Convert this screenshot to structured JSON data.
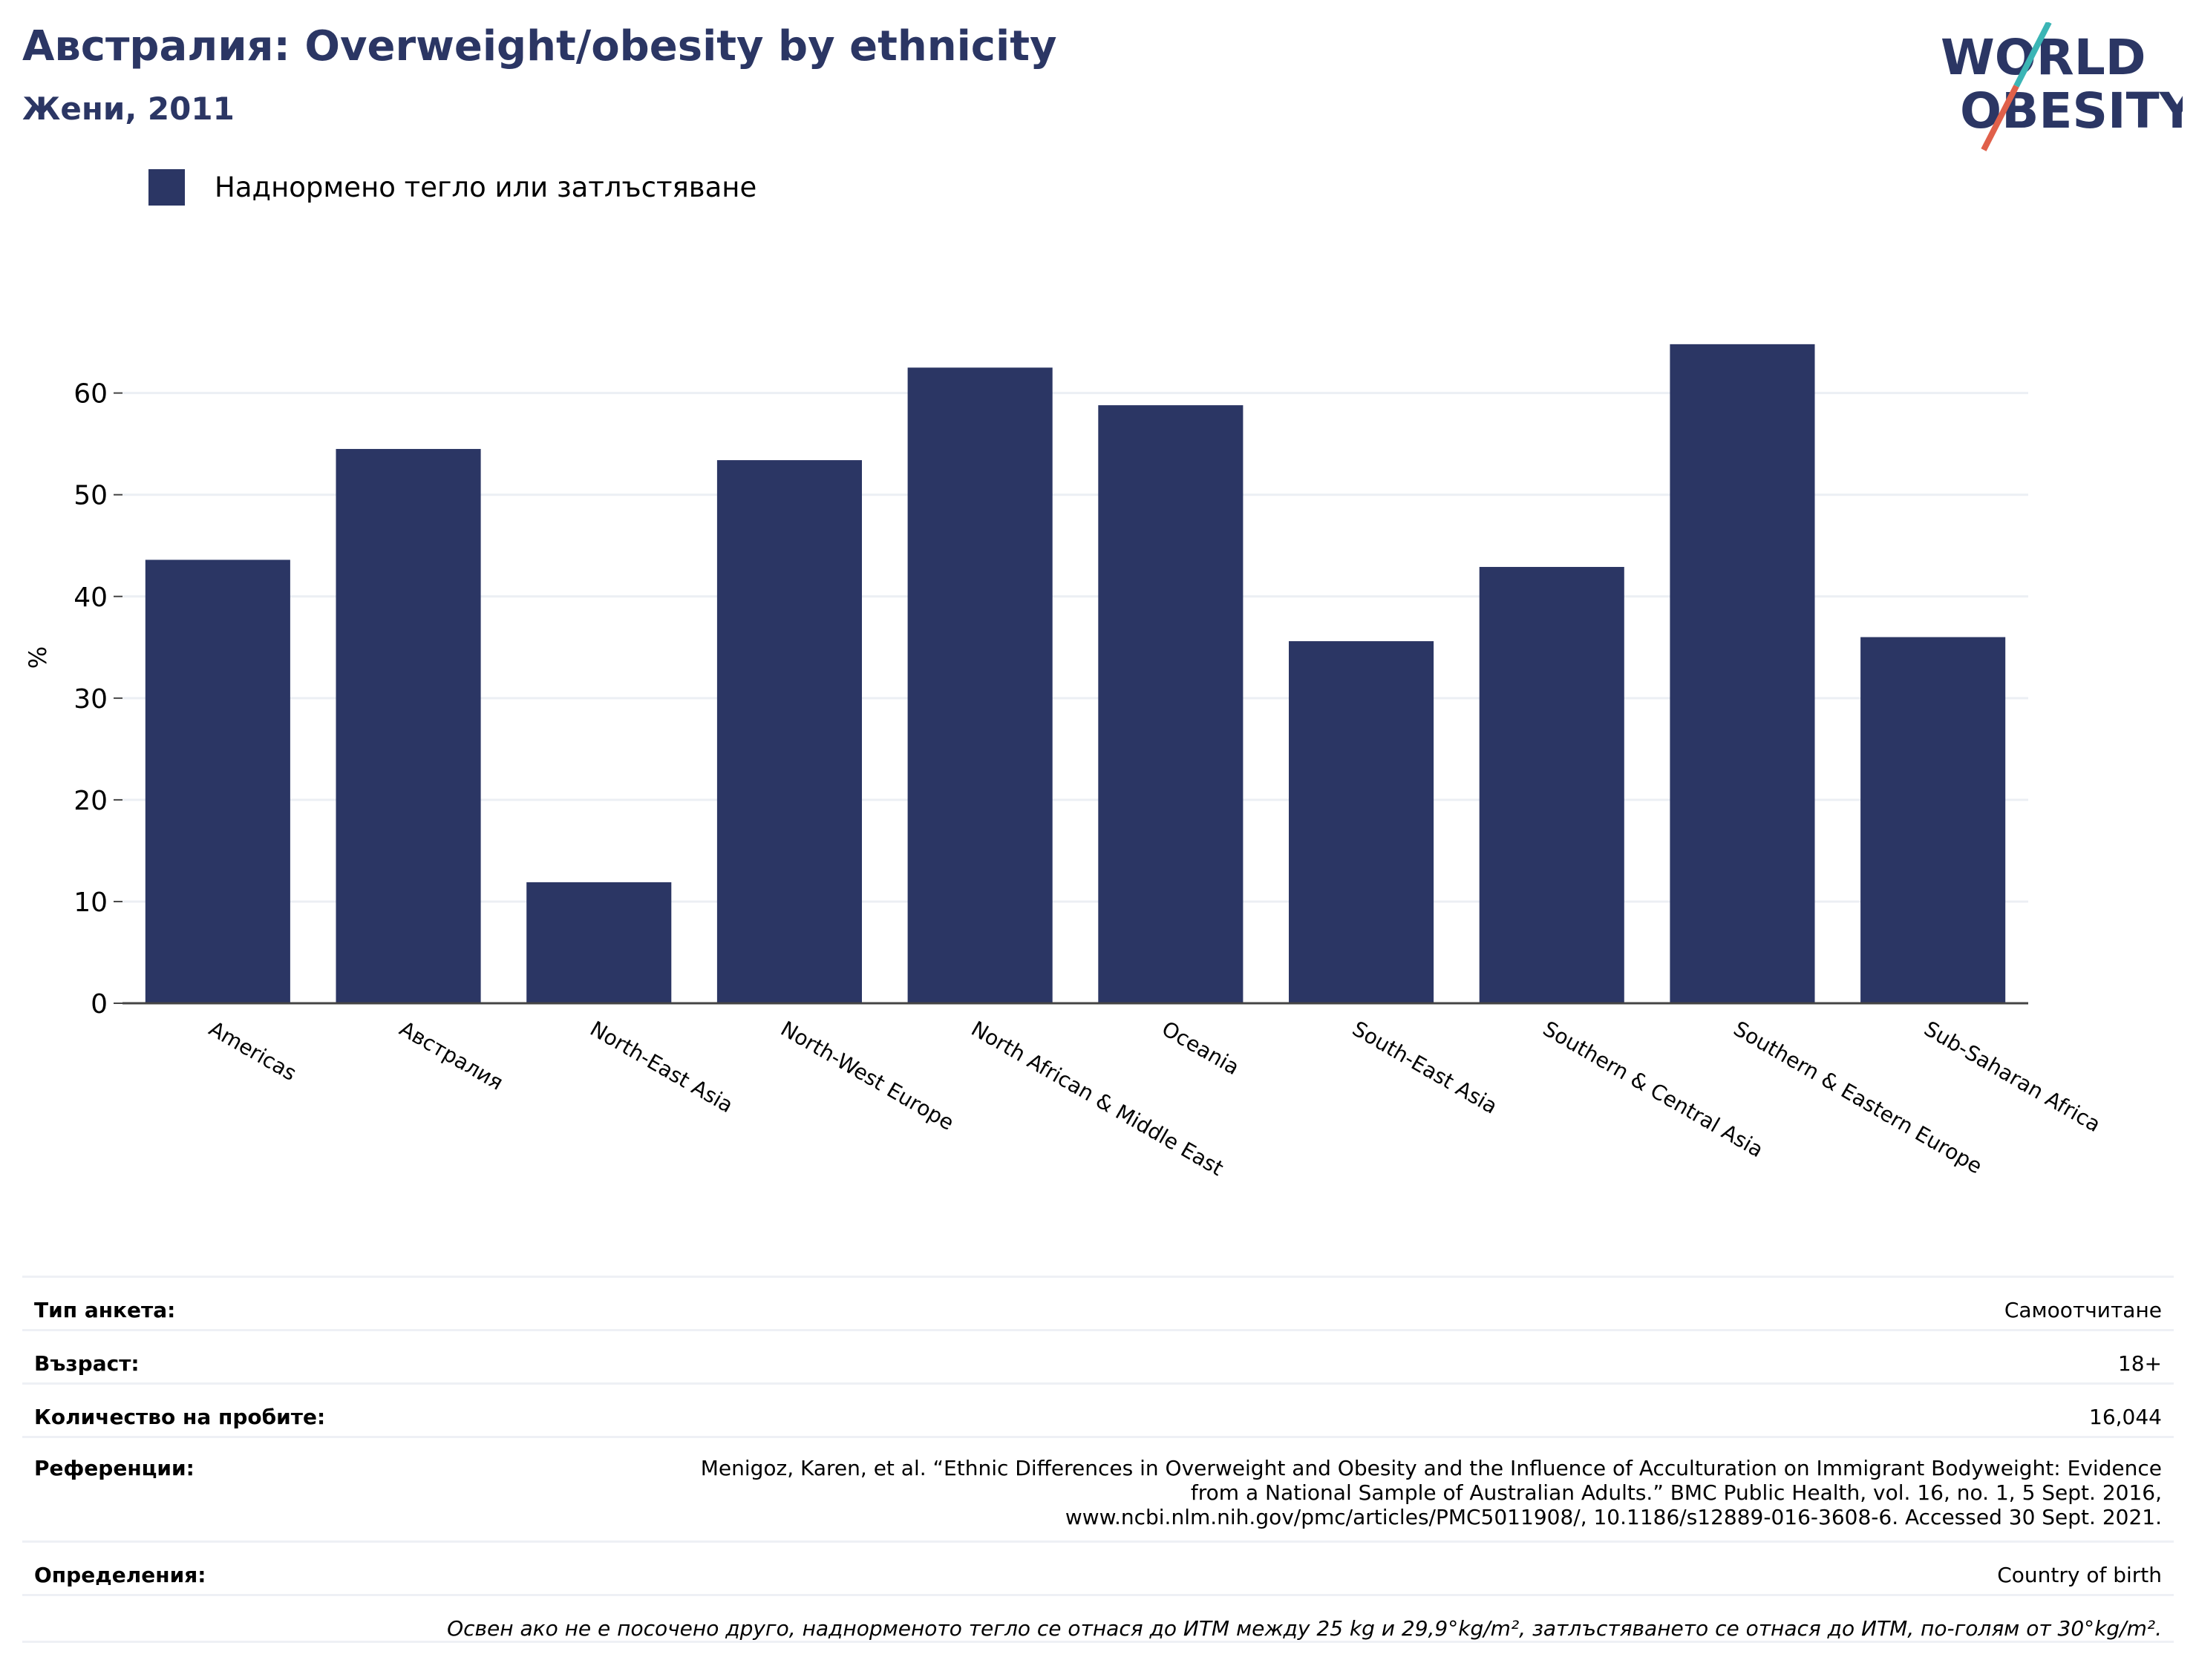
{
  "header": {
    "title": "Австралия: Overweight/obesity by ethnicity",
    "subtitle": "Жени, 2011",
    "logo_line1": "WORLD",
    "logo_line2": "OBESITY"
  },
  "legend": {
    "label": "Наднормено тегло или затлъстяване"
  },
  "colors": {
    "bar": "#2b3664",
    "grid": "#eceff4",
    "axis": "#444444",
    "logo_teal": "#3bb5b5",
    "logo_red": "#e0604a"
  },
  "chart_data": {
    "type": "bar",
    "categories": [
      "Americas",
      "Австралия",
      "North-East Asia",
      "North-West Europe",
      "North African & Middle East",
      "Oceania",
      "South-East Asia",
      "Southern & Central Asia",
      "Southern & Eastern Europe",
      "Sub-Saharan Africa"
    ],
    "series": [
      {
        "name": "Наднормено тегло или затлъстяване",
        "values": [
          43.6,
          54.5,
          11.9,
          53.4,
          62.5,
          58.8,
          35.6,
          42.9,
          64.8,
          36.0
        ]
      }
    ],
    "ylabel": "%",
    "ylim": [
      0,
      68
    ],
    "yticks": [
      0,
      10,
      20,
      30,
      40,
      50,
      60
    ],
    "grid": true,
    "legend_position": "top-left"
  },
  "info": {
    "survey_type_label": "Тип анкета:",
    "survey_type_value": "Самоотчитане",
    "age_label": "Възраст:",
    "age_value": "18+",
    "sample_label": "Количество на пробите:",
    "sample_value": "16,044",
    "ref_label": "Референции:",
    "ref_line1": "Menigoz, Karen, et al. “Ethnic Differences in Overweight and Obesity and the Influence of Acculturation on Immigrant Bodyweight: Evidence",
    "ref_line2": "from a National Sample of Australian Adults.” BMC Public Health, vol. 16, no. 1, 5 Sept. 2016,",
    "ref_line3": "www.ncbi.nlm.nih.gov/pmc/articles/PMC5011908/, 10.1186/s12889-016-3608-6. Accessed 30 Sept. 2021.",
    "def_label": "Определения:",
    "def_value": "Country of birth",
    "note": "Освен ако не е посочено друго, наднорменото тегло се отнася до ИТМ между 25 kg и 29,9°kg/m², затлъстяването се отнася до ИТМ, по-голям от 30°kg/m²."
  }
}
